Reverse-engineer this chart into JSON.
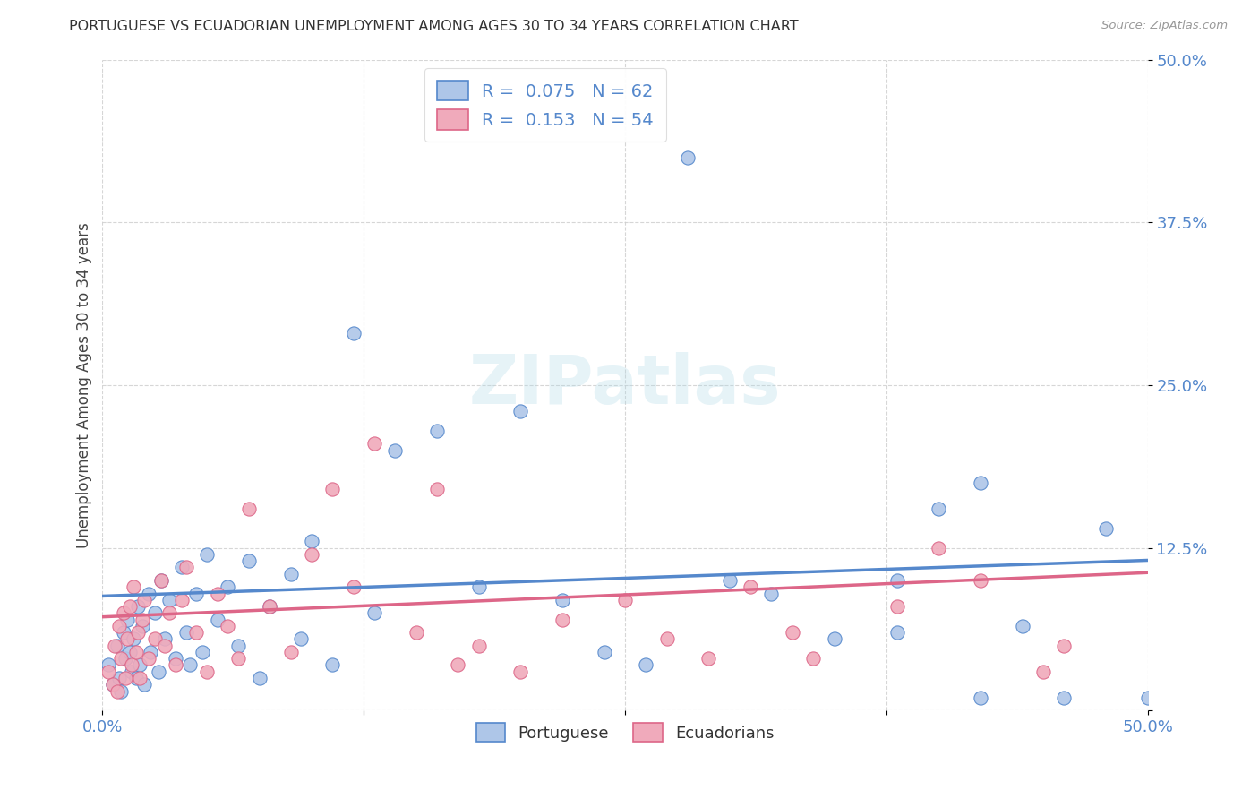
{
  "title": "PORTUGUESE VS ECUADORIAN UNEMPLOYMENT AMONG AGES 30 TO 34 YEARS CORRELATION CHART",
  "source": "Source: ZipAtlas.com",
  "ylabel": "Unemployment Among Ages 30 to 34 years",
  "xlim": [
    0.0,
    0.5
  ],
  "ylim": [
    0.0,
    0.5
  ],
  "portuguese_R": "0.075",
  "portuguese_N": "62",
  "ecuadorian_R": "0.153",
  "ecuadorian_N": "54",
  "portuguese_color": "#aec6e8",
  "ecuadorian_color": "#f0aabb",
  "trend_portuguese_color": "#5588cc",
  "trend_ecuadorian_color": "#dd6688",
  "background_color": "#ffffff",
  "portuguese_trend_intercept": 0.088,
  "portuguese_trend_slope": 0.055,
  "ecuadorian_trend_intercept": 0.072,
  "ecuadorian_trend_slope": 0.068,
  "portuguese_x": [
    0.003,
    0.005,
    0.007,
    0.008,
    0.009,
    0.01,
    0.011,
    0.012,
    0.013,
    0.014,
    0.015,
    0.016,
    0.017,
    0.018,
    0.019,
    0.02,
    0.022,
    0.023,
    0.025,
    0.027,
    0.028,
    0.03,
    0.032,
    0.035,
    0.038,
    0.04,
    0.042,
    0.045,
    0.048,
    0.05,
    0.055,
    0.06,
    0.065,
    0.07,
    0.075,
    0.08,
    0.09,
    0.095,
    0.1,
    0.11,
    0.12,
    0.13,
    0.14,
    0.16,
    0.18,
    0.2,
    0.22,
    0.24,
    0.26,
    0.28,
    0.3,
    0.32,
    0.35,
    0.38,
    0.4,
    0.42,
    0.44,
    0.46,
    0.48,
    0.5,
    0.38,
    0.42
  ],
  "portuguese_y": [
    0.035,
    0.02,
    0.05,
    0.025,
    0.015,
    0.06,
    0.04,
    0.07,
    0.045,
    0.03,
    0.055,
    0.025,
    0.08,
    0.035,
    0.065,
    0.02,
    0.09,
    0.045,
    0.075,
    0.03,
    0.1,
    0.055,
    0.085,
    0.04,
    0.11,
    0.06,
    0.035,
    0.09,
    0.045,
    0.12,
    0.07,
    0.095,
    0.05,
    0.115,
    0.025,
    0.08,
    0.105,
    0.055,
    0.13,
    0.035,
    0.29,
    0.075,
    0.2,
    0.215,
    0.095,
    0.23,
    0.085,
    0.045,
    0.035,
    0.425,
    0.1,
    0.09,
    0.055,
    0.1,
    0.155,
    0.175,
    0.065,
    0.01,
    0.14,
    0.01,
    0.06,
    0.01
  ],
  "ecuadorian_x": [
    0.003,
    0.005,
    0.006,
    0.007,
    0.008,
    0.009,
    0.01,
    0.011,
    0.012,
    0.013,
    0.014,
    0.015,
    0.016,
    0.017,
    0.018,
    0.019,
    0.02,
    0.022,
    0.025,
    0.028,
    0.03,
    0.032,
    0.035,
    0.038,
    0.04,
    0.045,
    0.05,
    0.055,
    0.06,
    0.065,
    0.07,
    0.08,
    0.09,
    0.1,
    0.11,
    0.12,
    0.13,
    0.15,
    0.16,
    0.17,
    0.18,
    0.2,
    0.22,
    0.25,
    0.27,
    0.29,
    0.31,
    0.33,
    0.34,
    0.38,
    0.4,
    0.42,
    0.45,
    0.46
  ],
  "ecuadorian_y": [
    0.03,
    0.02,
    0.05,
    0.015,
    0.065,
    0.04,
    0.075,
    0.025,
    0.055,
    0.08,
    0.035,
    0.095,
    0.045,
    0.06,
    0.025,
    0.07,
    0.085,
    0.04,
    0.055,
    0.1,
    0.05,
    0.075,
    0.035,
    0.085,
    0.11,
    0.06,
    0.03,
    0.09,
    0.065,
    0.04,
    0.155,
    0.08,
    0.045,
    0.12,
    0.17,
    0.095,
    0.205,
    0.06,
    0.17,
    0.035,
    0.05,
    0.03,
    0.07,
    0.085,
    0.055,
    0.04,
    0.095,
    0.06,
    0.04,
    0.08,
    0.125,
    0.1,
    0.03,
    0.05
  ]
}
